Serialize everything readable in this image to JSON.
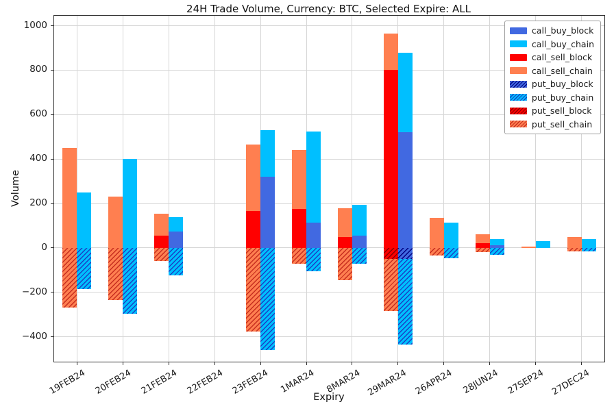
{
  "figure": {
    "title": "24H Trade Volume, Currency: BTC, Selected Expire: ALL",
    "xlabel": "Expiry",
    "ylabel": "Volume"
  },
  "chart_data": {
    "type": "bar",
    "stacked": true,
    "grid": true,
    "legend_position": "upper right",
    "title": "24H Trade Volume, Currency: BTC, Selected Expire: ALL",
    "xlabel": "Expiry",
    "ylabel": "Volume",
    "ylim": [
      -512,
      1045
    ],
    "yticks": [
      1000,
      800,
      600,
      400,
      200,
      0,
      -200,
      -400
    ],
    "categories": [
      "19FEB24",
      "20FEB24",
      "21FEB24",
      "22FEB24",
      "23FEB24",
      "1MAR24",
      "8MAR24",
      "29MAR24",
      "26APR24",
      "28JUN24",
      "27SEP24",
      "27DEC24"
    ],
    "bar_groups": {
      "sell_bar_positive": [
        "call_sell_block",
        "call_sell_chain"
      ],
      "sell_bar_negative": [
        "put_sell_block",
        "put_sell_chain"
      ],
      "buy_bar_positive": [
        "call_buy_block",
        "call_buy_chain"
      ],
      "buy_bar_negative": [
        "put_buy_block",
        "put_buy_chain"
      ]
    },
    "series": [
      {
        "name": "call_buy_block",
        "color": "#4169E1",
        "hatch": null,
        "values": [
          0,
          0,
          75,
          0,
          320,
          115,
          55,
          520,
          0,
          12,
          0,
          0
        ]
      },
      {
        "name": "call_buy_chain",
        "color": "#00BFFF",
        "hatch": null,
        "values": [
          250,
          400,
          65,
          0,
          210,
          410,
          140,
          360,
          115,
          28,
          30,
          40
        ]
      },
      {
        "name": "call_sell_block",
        "color": "#FF0000",
        "hatch": null,
        "values": [
          0,
          0,
          55,
          0,
          165,
          175,
          50,
          800,
          0,
          20,
          0,
          0
        ]
      },
      {
        "name": "call_sell_chain",
        "color": "#FF7F50",
        "hatch": null,
        "values": [
          450,
          230,
          100,
          0,
          300,
          265,
          130,
          165,
          135,
          40,
          5,
          50
        ]
      },
      {
        "name": "put_buy_block",
        "color": "#4169E1",
        "hatch": "#000080",
        "values": [
          0,
          0,
          0,
          0,
          0,
          0,
          0,
          -50,
          0,
          0,
          0,
          0
        ]
      },
      {
        "name": "put_buy_chain",
        "color": "#00BFFF",
        "hatch": "#1a3fc4",
        "values": [
          -185,
          -295,
          -125,
          0,
          -460,
          -105,
          -70,
          -385,
          -45,
          -30,
          0,
          -15
        ]
      },
      {
        "name": "put_sell_block",
        "color": "#FF0000",
        "hatch": "#8B0000",
        "values": [
          0,
          0,
          0,
          0,
          0,
          0,
          0,
          -50,
          0,
          0,
          0,
          0
        ]
      },
      {
        "name": "put_sell_chain",
        "color": "#FF7F50",
        "hatch": "#C62D1F",
        "values": [
          -270,
          -235,
          -60,
          0,
          -375,
          -70,
          -145,
          -235,
          -35,
          -20,
          0,
          -15
        ]
      }
    ]
  }
}
